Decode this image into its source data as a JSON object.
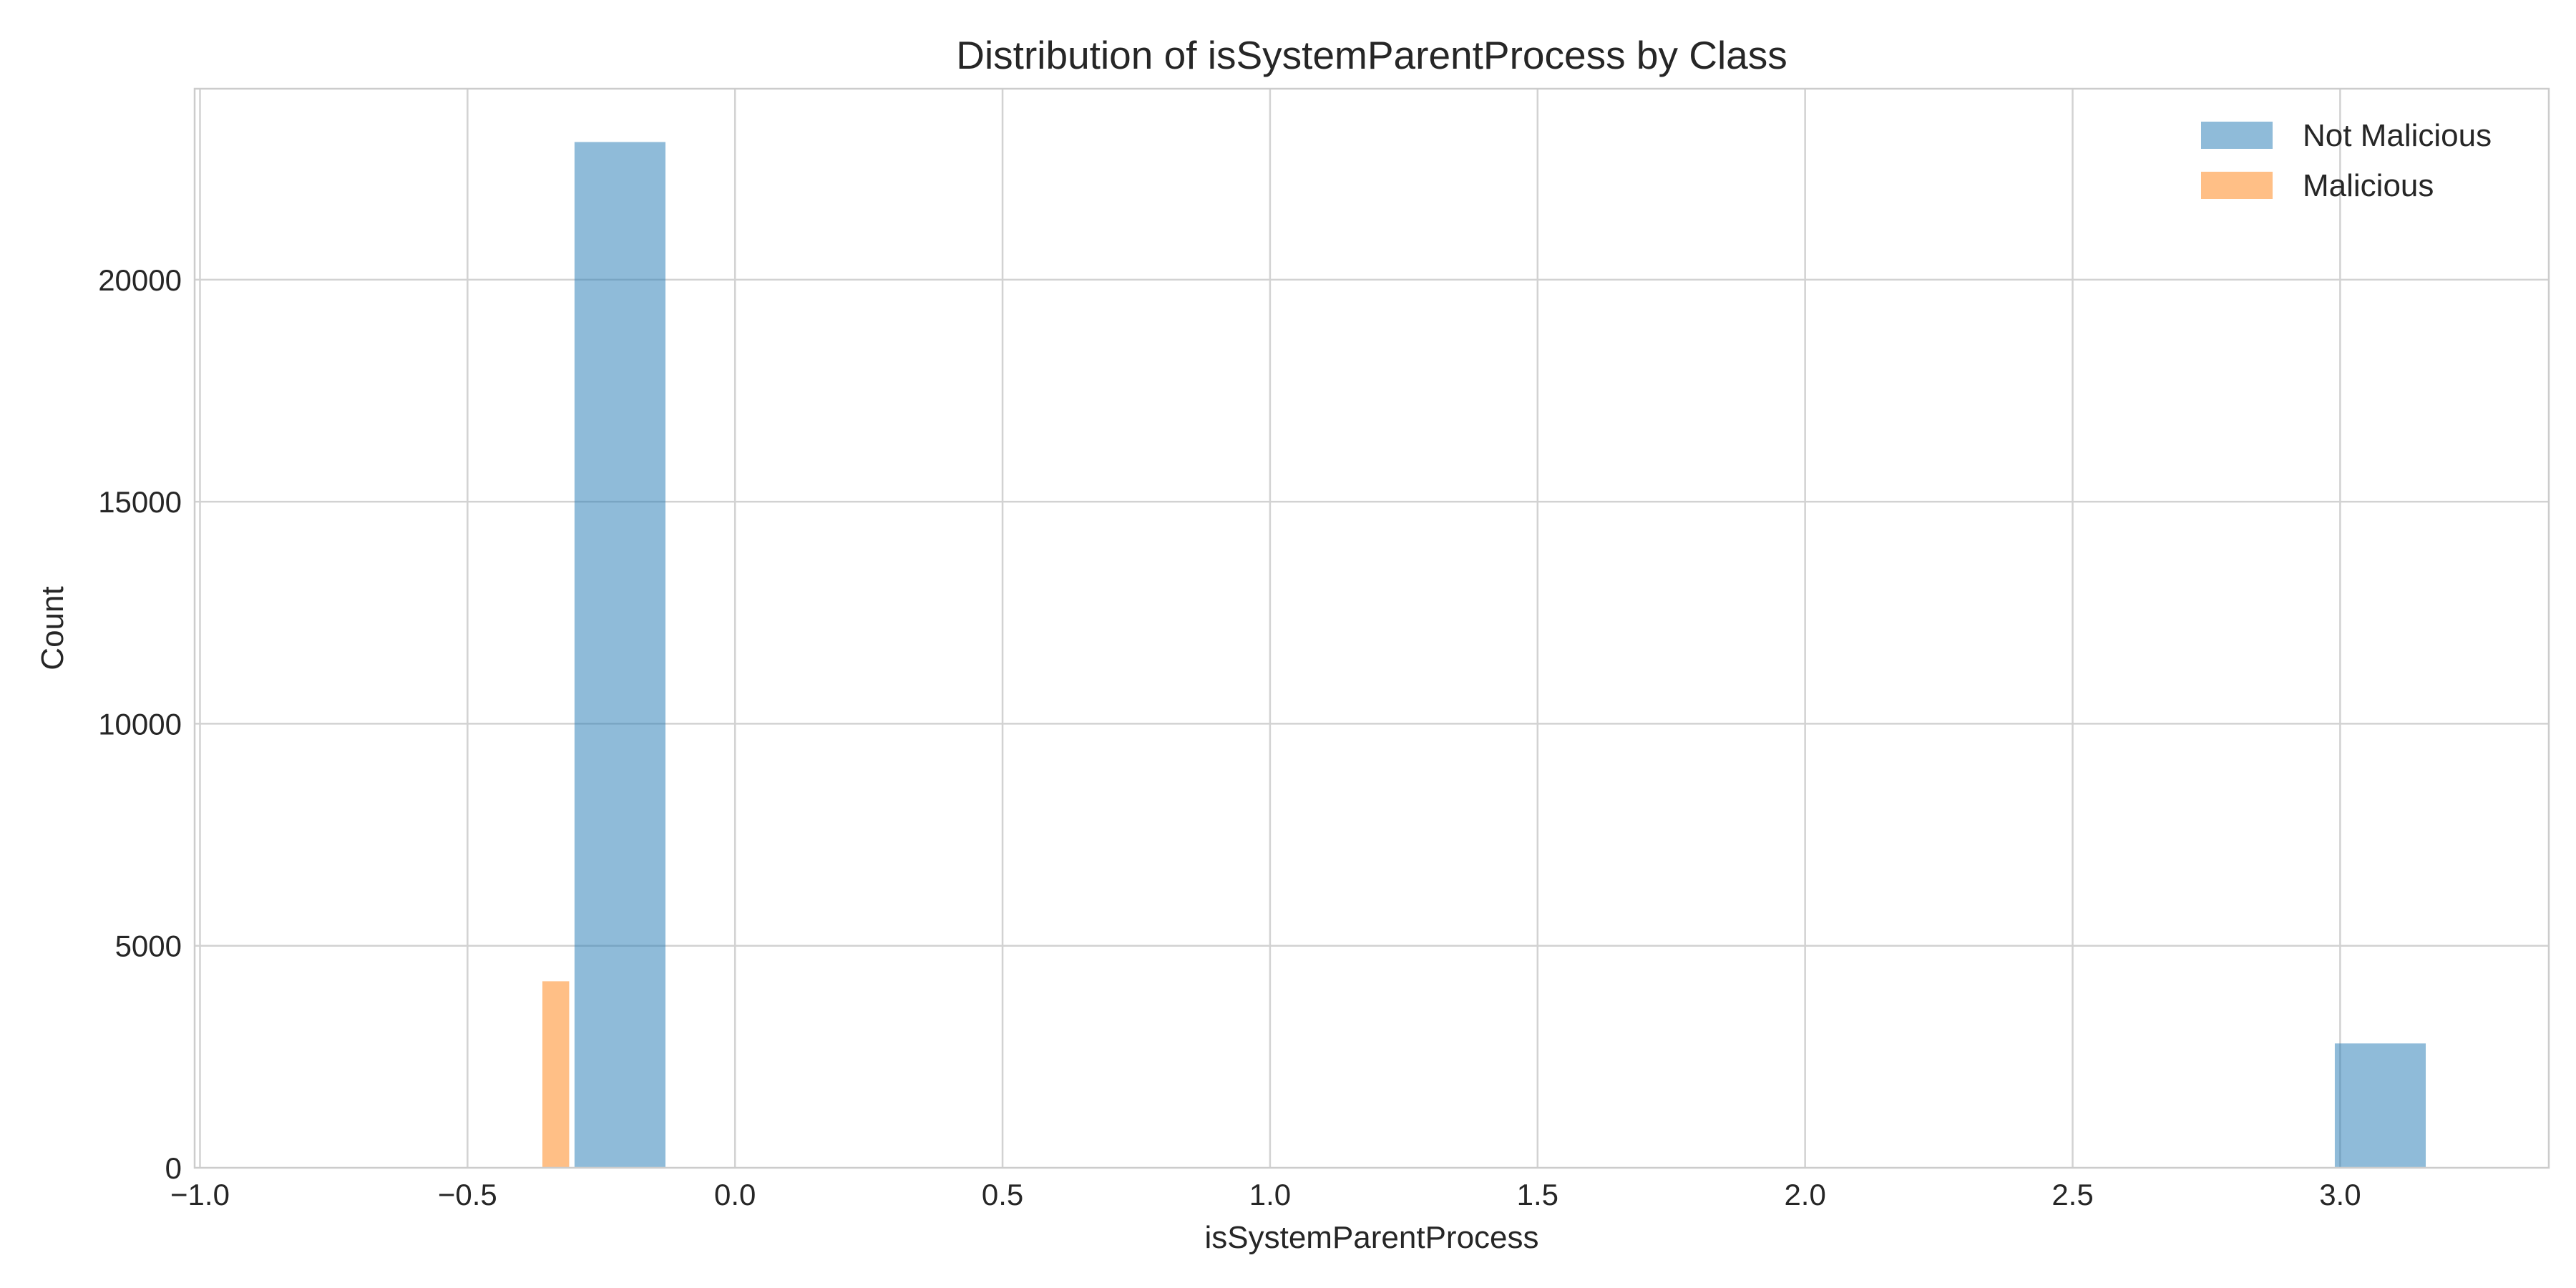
{
  "chart_data": {
    "type": "bar",
    "title": "Distribution of isSystemParentProcess by Class",
    "xlabel": "isSystemParentProcess",
    "ylabel": "Count",
    "xlim": [
      -1.01,
      3.39
    ],
    "ylim": [
      0,
      24300
    ],
    "xticks": [
      -1.0,
      -0.5,
      0.0,
      0.5,
      1.0,
      1.5,
      2.0,
      2.5,
      3.0
    ],
    "xtick_labels": [
      "−1.0",
      "−0.5",
      "0.0",
      "0.5",
      "1.0",
      "1.5",
      "2.0",
      "2.5",
      "3.0"
    ],
    "yticks": [
      0,
      5000,
      10000,
      15000,
      20000
    ],
    "ytick_labels": [
      "0",
      "5000",
      "10000",
      "15000",
      "20000"
    ],
    "grid": true,
    "legend_position": "top-right",
    "series": [
      {
        "name": "Not Malicious",
        "color": "#1f77b4",
        "opacity": 0.5,
        "bars": [
          {
            "x_start": -0.3,
            "x_end": -0.13,
            "value": 23100
          },
          {
            "x_start": 2.99,
            "x_end": 3.16,
            "value": 2800
          }
        ]
      },
      {
        "name": "Malicious",
        "color": "#ff7f0e",
        "opacity": 0.5,
        "bars": [
          {
            "x_start": -0.36,
            "x_end": -0.31,
            "value": 4200
          }
        ]
      }
    ]
  }
}
